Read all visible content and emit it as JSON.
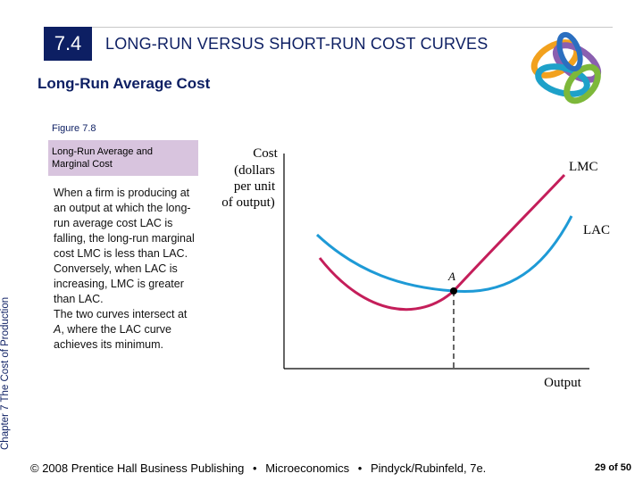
{
  "header": {
    "section_number": "7.4",
    "title": "LONG-RUN VERSUS SHORT-RUN COST CURVES"
  },
  "subtitle": "Long-Run Average Cost",
  "figure": {
    "label": "Figure 7.8",
    "caption_line1": "Long-Run Average and",
    "caption_line2": "Marginal Cost"
  },
  "description": {
    "p1": "When a firm is producing at an output at which the long-run average cost LAC is falling, the long-run marginal cost LMC is less than LAC.",
    "p2": "Conversely, when LAC is increasing, LMC is greater than LAC.",
    "p3_prefix": "The two curves intersect at ",
    "p3_point": "A",
    "p3_suffix": ", where the LAC curve achieves its minimum."
  },
  "sidebar": {
    "chapter_label": "Chapter 7  The Cost of Production"
  },
  "chart_data": {
    "type": "line",
    "ylabel_lines": [
      "Cost",
      "(dollars",
      "per unit",
      "of output)"
    ],
    "xlabel": "Output",
    "series": [
      {
        "name": "LMC",
        "color": "#c41e5a"
      },
      {
        "name": "LAC",
        "color": "#1e9ad6"
      }
    ],
    "points": [
      {
        "label": "A"
      }
    ]
  },
  "footer": {
    "copyright": "© 2008 Prentice Hall Business Publishing",
    "separator": "•",
    "book": "Microeconomics",
    "authors": "Pindyck/Rubinfeld, 7e."
  },
  "pagination": {
    "current": "29",
    "of_label": "of",
    "total": "50"
  },
  "colors": {
    "navy": "#0d1f63",
    "caption_bg": "#d8c4de",
    "lmc": "#c41e5a",
    "lac": "#1e9ad6"
  }
}
